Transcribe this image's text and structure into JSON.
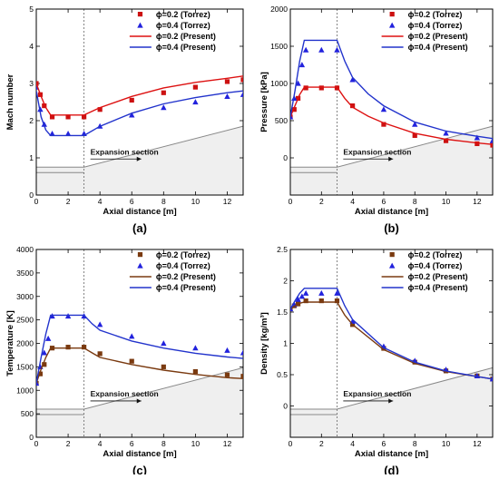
{
  "chart_data": [
    {
      "type": "line",
      "panel_label": "(a)",
      "xlabel": "Axial distance [m]",
      "ylabel": "Mach number",
      "xlim": [
        0,
        13
      ],
      "ylim": [
        0,
        5
      ],
      "xticks": [
        "0",
        "2",
        "4",
        "6",
        "8",
        "10",
        "12"
      ],
      "yticks": [
        "0",
        "1",
        "2",
        "3",
        "4",
        "5"
      ],
      "legend": "top-right",
      "annotation": "Expansion section",
      "series": [
        {
          "name": "ϕ=0.2 (Torrez)",
          "kind": "marker",
          "marker": "square",
          "color": "#cc1111",
          "x": [
            0,
            0.25,
            0.5,
            1,
            2,
            3,
            4,
            6,
            8,
            10,
            12,
            13
          ],
          "y": [
            3.0,
            2.7,
            2.4,
            2.1,
            2.1,
            2.1,
            2.3,
            2.55,
            2.75,
            2.9,
            3.05,
            3.1
          ]
        },
        {
          "name": "ϕ=0.4 (Torrez)",
          "kind": "marker",
          "marker": "triangle",
          "color": "#2222dd",
          "x": [
            0,
            0.25,
            0.5,
            1,
            2,
            3,
            4,
            6,
            8,
            10,
            12,
            13
          ],
          "y": [
            2.9,
            2.3,
            1.9,
            1.65,
            1.65,
            1.65,
            1.85,
            2.15,
            2.35,
            2.5,
            2.65,
            2.7
          ]
        },
        {
          "name": "ϕ=0.2 (Present)",
          "kind": "line",
          "color": "#dd1111",
          "x": [
            0,
            0.3,
            0.6,
            0.9,
            3,
            4,
            6,
            8,
            10,
            12,
            13
          ],
          "y": [
            3.0,
            2.65,
            2.35,
            2.15,
            2.15,
            2.35,
            2.65,
            2.88,
            3.03,
            3.14,
            3.2
          ]
        },
        {
          "name": "ϕ=0.4 (Present)",
          "kind": "line",
          "color": "#2233cc",
          "x": [
            0,
            0.3,
            0.6,
            0.9,
            3,
            4,
            6,
            8,
            10,
            12,
            13
          ],
          "y": [
            2.8,
            2.1,
            1.75,
            1.6,
            1.6,
            1.85,
            2.2,
            2.45,
            2.62,
            2.75,
            2.8
          ]
        }
      ]
    },
    {
      "type": "line",
      "panel_label": "(b)",
      "xlabel": "Axial distance [m]",
      "ylabel": "Pressure [kPa]",
      "xlim": [
        0,
        13
      ],
      "ylim": [
        -500,
        2000
      ],
      "xticks": [
        "0",
        "2",
        "4",
        "6",
        "8",
        "10",
        "12"
      ],
      "yticks": [
        "0",
        "500",
        "1000",
        "1500",
        "2000"
      ],
      "legend": "top-right",
      "annotation": "Expansion section",
      "series": [
        {
          "name": "ϕ=0.2 (Torrez)",
          "kind": "marker",
          "marker": "square",
          "color": "#cc1111",
          "x": [
            0,
            0.25,
            0.5,
            1,
            2,
            3,
            4,
            6,
            8,
            10,
            12,
            13
          ],
          "y": [
            550,
            650,
            800,
            940,
            940,
            940,
            700,
            450,
            300,
            230,
            190,
            170
          ]
        },
        {
          "name": "ϕ=0.4 (Torrez)",
          "kind": "marker",
          "marker": "triangle",
          "color": "#2222dd",
          "x": [
            0,
            0.25,
            0.5,
            0.75,
            1,
            2,
            3,
            4,
            6,
            8,
            10,
            12,
            13
          ],
          "y": [
            550,
            800,
            1000,
            1250,
            1450,
            1450,
            1450,
            1050,
            650,
            450,
            330,
            270,
            230
          ]
        },
        {
          "name": "ϕ=0.2 (Present)",
          "kind": "line",
          "color": "#dd1111",
          "x": [
            0,
            0.3,
            0.6,
            0.9,
            3,
            3.5,
            4,
            5,
            6,
            8,
            10,
            12,
            13
          ],
          "y": [
            550,
            700,
            850,
            950,
            950,
            800,
            680,
            560,
            470,
            330,
            250,
            200,
            180
          ]
        },
        {
          "name": "ϕ=0.4 (Present)",
          "kind": "line",
          "color": "#2233cc",
          "x": [
            0,
            0.3,
            0.6,
            0.9,
            3,
            3.5,
            4,
            5,
            6,
            8,
            10,
            12,
            13
          ],
          "y": [
            550,
            900,
            1300,
            1580,
            1580,
            1300,
            1080,
            860,
            700,
            480,
            360,
            290,
            260
          ]
        }
      ]
    },
    {
      "type": "line",
      "panel_label": "(c)",
      "xlabel": "Axial distance [m]",
      "ylabel": "Temperature [K]",
      "xlim": [
        0,
        13
      ],
      "ylim": [
        0,
        4000
      ],
      "xticks": [
        "0",
        "2",
        "4",
        "6",
        "8",
        "10",
        "12"
      ],
      "yticks": [
        "0",
        "500",
        "1000",
        "1500",
        "2000",
        "2500",
        "3000",
        "3500",
        "4000"
      ],
      "legend": "top-right",
      "annotation": "Expansion section",
      "series": [
        {
          "name": "ϕ=0.2 (Torrez)",
          "kind": "marker",
          "marker": "square",
          "color": "#7a3a10",
          "x": [
            0,
            0.25,
            0.5,
            1,
            2,
            3,
            4,
            6,
            8,
            10,
            12,
            13
          ],
          "y": [
            1150,
            1350,
            1550,
            1900,
            1920,
            1920,
            1780,
            1620,
            1500,
            1400,
            1330,
            1300
          ]
        },
        {
          "name": "ϕ=0.4 (Torrez)",
          "kind": "marker",
          "marker": "triangle",
          "color": "#2222dd",
          "x": [
            0,
            0.25,
            0.5,
            0.75,
            1,
            2,
            3,
            4,
            6,
            8,
            10,
            12,
            13
          ],
          "y": [
            1150,
            1500,
            1800,
            2100,
            2580,
            2580,
            2580,
            2400,
            2150,
            2000,
            1900,
            1850,
            1800
          ]
        },
        {
          "name": "ϕ=0.2 (Present)",
          "kind": "line",
          "color": "#7a3a10",
          "x": [
            0,
            0.3,
            0.6,
            0.9,
            3,
            3.5,
            4,
            6,
            8,
            10,
            12,
            13
          ],
          "y": [
            1150,
            1450,
            1700,
            1900,
            1900,
            1800,
            1700,
            1550,
            1430,
            1340,
            1270,
            1250
          ]
        },
        {
          "name": "ϕ=0.4 (Present)",
          "kind": "line",
          "color": "#2233cc",
          "x": [
            0,
            0.3,
            0.6,
            0.9,
            3,
            3.5,
            4,
            6,
            8,
            10,
            12,
            13
          ],
          "y": [
            1150,
            1700,
            2200,
            2600,
            2600,
            2420,
            2280,
            2050,
            1900,
            1790,
            1710,
            1680
          ]
        }
      ]
    },
    {
      "type": "line",
      "panel_label": "(d)",
      "xlabel": "Axial distance [m]",
      "ylabel": "Density [kg/m³]",
      "xlim": [
        0,
        13
      ],
      "ylim": [
        -0.5,
        2.5
      ],
      "xticks": [
        "0",
        "2",
        "4",
        "6",
        "8",
        "10",
        "12"
      ],
      "yticks": [
        "0",
        "0.5",
        "1",
        "1.5",
        "2",
        "2.5"
      ],
      "legend": "top-right",
      "annotation": "Expansion section",
      "series": [
        {
          "name": "ϕ=0.2 (Torrez)",
          "kind": "marker",
          "marker": "square",
          "color": "#7a3a10",
          "x": [
            0,
            0.25,
            0.5,
            1,
            2,
            3,
            4,
            6,
            8,
            10,
            12,
            13
          ],
          "y": [
            1.55,
            1.6,
            1.63,
            1.68,
            1.68,
            1.68,
            1.3,
            0.92,
            0.7,
            0.56,
            0.48,
            0.43
          ]
        },
        {
          "name": "ϕ=0.4 (Torrez)",
          "kind": "marker",
          "marker": "triangle",
          "color": "#2222dd",
          "x": [
            0,
            0.25,
            0.5,
            0.75,
            1,
            2,
            3,
            4,
            6,
            8,
            10,
            12,
            13
          ],
          "y": [
            1.55,
            1.62,
            1.7,
            1.75,
            1.8,
            1.8,
            1.8,
            1.35,
            0.95,
            0.72,
            0.58,
            0.48,
            0.43
          ]
        },
        {
          "name": "ϕ=0.2 (Present)",
          "kind": "line",
          "color": "#7a3a10",
          "x": [
            0,
            0.3,
            0.6,
            0.9,
            3,
            3.5,
            4,
            6,
            8,
            10,
            12,
            13
          ],
          "y": [
            1.55,
            1.6,
            1.64,
            1.66,
            1.66,
            1.45,
            1.3,
            0.9,
            0.68,
            0.55,
            0.47,
            0.43
          ]
        },
        {
          "name": "ϕ=0.4 (Present)",
          "kind": "line",
          "color": "#2233cc",
          "x": [
            0,
            0.3,
            0.6,
            0.9,
            3,
            3.5,
            4,
            6,
            8,
            10,
            12,
            13
          ],
          "y": [
            1.55,
            1.68,
            1.8,
            1.88,
            1.88,
            1.6,
            1.38,
            0.93,
            0.7,
            0.56,
            0.47,
            0.43
          ]
        }
      ]
    }
  ]
}
